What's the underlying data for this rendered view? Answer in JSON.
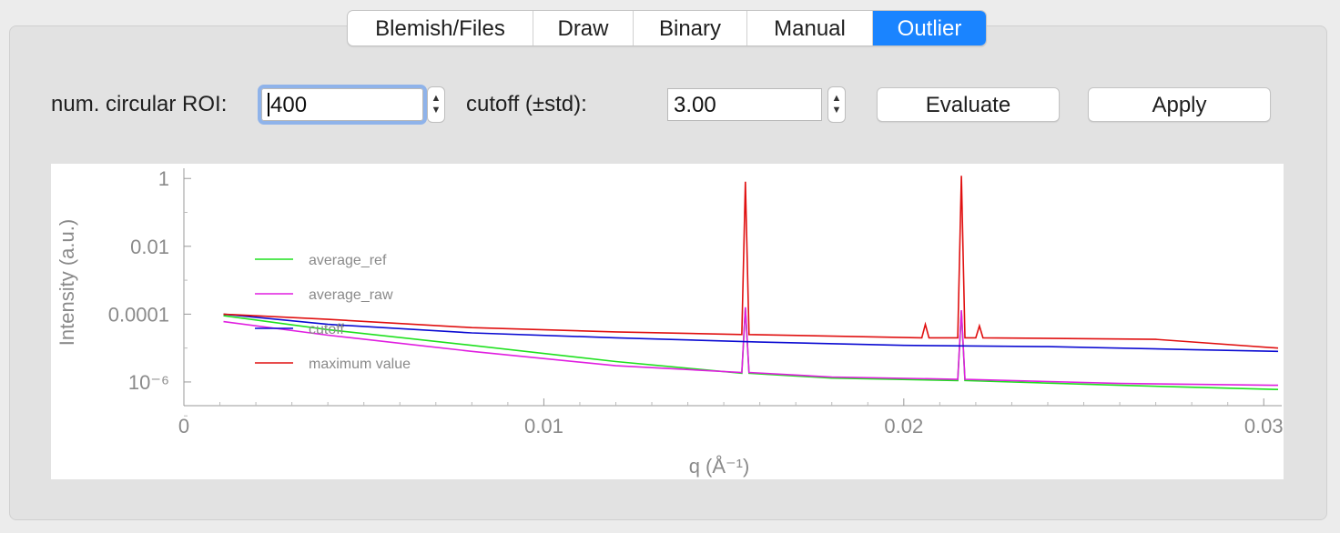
{
  "tabs": [
    {
      "label": "Blemish/Files",
      "active": false
    },
    {
      "label": "Draw",
      "active": false
    },
    {
      "label": "Binary",
      "active": false
    },
    {
      "label": "Manual",
      "active": false
    },
    {
      "label": "Outlier",
      "active": true
    }
  ],
  "controls": {
    "roi_label": "num. circular ROI:",
    "roi_value": "400",
    "cutoff_label": "cutoff (±std):",
    "cutoff_value": "3.00",
    "evaluate_label": "Evaluate",
    "apply_label": "Apply"
  },
  "colors": {
    "accent": "#1a84ff",
    "average_ref": "#1ee01e",
    "average_raw": "#e01ee0",
    "cutoff": "#0a0ad2",
    "maximum_value": "#e01010"
  },
  "chart_data": {
    "type": "line",
    "xlabel": "q (Å⁻¹)",
    "ylabel": "Intensity (a.u.)",
    "xlim": [
      0,
      0.0305
    ],
    "ylim": [
      2e-07,
      2
    ],
    "y_scale": "log",
    "x_ticks": [
      "0",
      "0.01",
      "0.02",
      "0.03"
    ],
    "y_ticks": [
      "1",
      "0.01",
      "0.0001",
      "10⁻⁶"
    ],
    "grid": false,
    "legend_position": "left",
    "series": [
      {
        "name": "average_ref",
        "color": "#1ee01e",
        "x": [
          0.0011,
          0.004,
          0.008,
          0.012,
          0.0155,
          0.0156,
          0.0157,
          0.018,
          0.0215,
          0.0216,
          0.0217,
          0.026,
          0.0304
        ],
        "y": [
          9e-05,
          3.5e-05,
          1.2e-05,
          4e-06,
          1.8e-06,
          0.00015,
          1.8e-06,
          1.3e-06,
          1.1e-06,
          0.00012,
          1.1e-06,
          8e-07,
          6e-07
        ]
      },
      {
        "name": "average_raw",
        "color": "#e01ee0",
        "x": [
          0.0011,
          0.004,
          0.008,
          0.012,
          0.0155,
          0.0156,
          0.0157,
          0.018,
          0.0215,
          0.0216,
          0.0217,
          0.026,
          0.0304
        ],
        "y": [
          6e-05,
          2.4e-05,
          8e-06,
          3e-06,
          1.9e-06,
          0.00016,
          1.9e-06,
          1.4e-06,
          1.2e-06,
          0.00013,
          1.2e-06,
          9e-07,
          8e-07
        ]
      },
      {
        "name": "cutoff",
        "color": "#0a0ad2",
        "x": [
          0.0011,
          0.004,
          0.008,
          0.012,
          0.016,
          0.02,
          0.024,
          0.028,
          0.0304
        ],
        "y": [
          0.0001,
          5e-05,
          2.8e-05,
          2e-05,
          1.5e-05,
          1.2e-05,
          1.1e-05,
          9e-06,
          8e-06
        ]
      },
      {
        "name": "maximum value",
        "color": "#e01010",
        "x": [
          0.0011,
          0.004,
          0.008,
          0.012,
          0.0155,
          0.0156,
          0.0157,
          0.0205,
          0.0206,
          0.0207,
          0.0215,
          0.0216,
          0.0217,
          0.022,
          0.0221,
          0.0222,
          0.027,
          0.0304
        ],
        "y": [
          0.0001,
          7e-05,
          4e-05,
          3e-05,
          2.5e-05,
          0.8,
          2.5e-05,
          2e-05,
          5e-05,
          2e-05,
          2e-05,
          1.2,
          2e-05,
          2e-05,
          4.5e-05,
          2e-05,
          1.8e-05,
          1e-05
        ]
      }
    ]
  }
}
